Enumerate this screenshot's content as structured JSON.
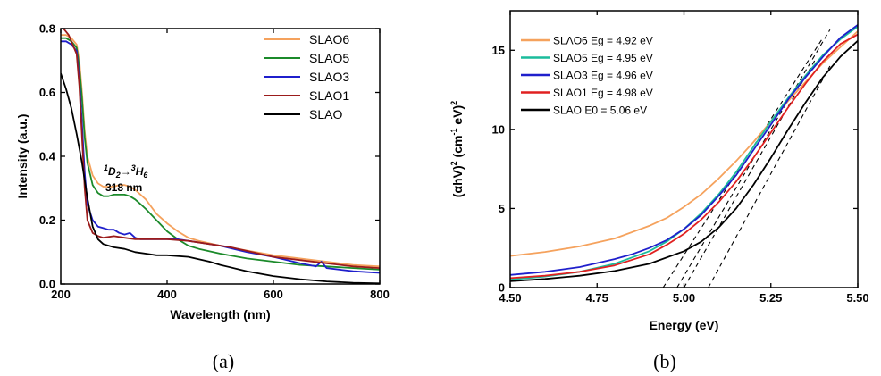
{
  "chart_data": [
    {
      "type": "line",
      "panel_label": "(a)",
      "xlabel": "Wavelength (nm)",
      "ylabel": "Intensity (a.u.)",
      "xlim": [
        200,
        800
      ],
      "ylim": [
        0,
        0.8
      ],
      "xticks": [
        "200",
        "400",
        "600",
        "800"
      ],
      "yticks": [
        "0.0",
        "0.2",
        "0.4",
        "0.6",
        "0.8"
      ],
      "legend_position": "top-right",
      "annotation": {
        "transition": "1D2→3H6",
        "wavelength": "318 nm"
      },
      "series": [
        {
          "name": "SLAO6",
          "color": "#f5a25d",
          "x": [
            200,
            210,
            220,
            230,
            235,
            240,
            245,
            250,
            260,
            270,
            280,
            290,
            300,
            310,
            320,
            330,
            340,
            350,
            360,
            380,
            400,
            420,
            440,
            460,
            500,
            550,
            600,
            650,
            700,
            750,
            800
          ],
          "y": [
            0.78,
            0.78,
            0.77,
            0.75,
            0.7,
            0.6,
            0.48,
            0.4,
            0.34,
            0.315,
            0.305,
            0.305,
            0.305,
            0.31,
            0.31,
            0.305,
            0.295,
            0.28,
            0.265,
            0.22,
            0.19,
            0.165,
            0.145,
            0.135,
            0.12,
            0.105,
            0.09,
            0.08,
            0.07,
            0.06,
            0.055
          ]
        },
        {
          "name": "SLAO5",
          "color": "#1b8a2a",
          "x": [
            200,
            210,
            220,
            230,
            235,
            240,
            245,
            250,
            260,
            270,
            280,
            290,
            300,
            310,
            320,
            330,
            340,
            350,
            360,
            380,
            400,
            420,
            440,
            460,
            500,
            550,
            600,
            650,
            700,
            750,
            800
          ],
          "y": [
            0.77,
            0.77,
            0.76,
            0.74,
            0.68,
            0.58,
            0.46,
            0.38,
            0.31,
            0.285,
            0.275,
            0.275,
            0.28,
            0.28,
            0.28,
            0.275,
            0.265,
            0.25,
            0.235,
            0.2,
            0.165,
            0.14,
            0.12,
            0.11,
            0.095,
            0.08,
            0.07,
            0.06,
            0.055,
            0.05,
            0.045
          ]
        },
        {
          "name": "SLAO3",
          "color": "#1f1fcc",
          "x": [
            200,
            210,
            220,
            230,
            235,
            240,
            245,
            250,
            260,
            270,
            280,
            290,
            300,
            310,
            320,
            330,
            340,
            350,
            360,
            380,
            400,
            420,
            440,
            460,
            500,
            550,
            600,
            650,
            680,
            690,
            700,
            750,
            800
          ],
          "y": [
            0.76,
            0.76,
            0.75,
            0.73,
            0.64,
            0.5,
            0.35,
            0.25,
            0.2,
            0.18,
            0.175,
            0.17,
            0.17,
            0.16,
            0.155,
            0.16,
            0.145,
            0.14,
            0.14,
            0.14,
            0.14,
            0.14,
            0.135,
            0.13,
            0.12,
            0.1,
            0.085,
            0.065,
            0.055,
            0.07,
            0.05,
            0.04,
            0.035
          ]
        },
        {
          "name": "SLAO1",
          "color": "#9b1b1b",
          "x": [
            200,
            205,
            210,
            215,
            220,
            230,
            235,
            240,
            245,
            250,
            260,
            270,
            280,
            300,
            320,
            340,
            360,
            380,
            400,
            440,
            480,
            520,
            560,
            600,
            650,
            700,
            750,
            800
          ],
          "y": [
            0.8,
            0.8,
            0.79,
            0.78,
            0.76,
            0.72,
            0.62,
            0.46,
            0.3,
            0.2,
            0.16,
            0.15,
            0.145,
            0.15,
            0.145,
            0.14,
            0.14,
            0.14,
            0.14,
            0.135,
            0.125,
            0.115,
            0.1,
            0.085,
            0.075,
            0.065,
            0.055,
            0.05
          ]
        },
        {
          "name": "SLAO",
          "color": "#000000",
          "x": [
            200,
            210,
            220,
            230,
            240,
            250,
            260,
            270,
            280,
            290,
            300,
            320,
            340,
            360,
            380,
            400,
            440,
            480,
            500,
            550,
            600,
            650,
            700,
            750,
            800
          ],
          "y": [
            0.66,
            0.61,
            0.55,
            0.47,
            0.38,
            0.27,
            0.18,
            0.14,
            0.125,
            0.12,
            0.115,
            0.11,
            0.1,
            0.095,
            0.09,
            0.09,
            0.085,
            0.07,
            0.06,
            0.04,
            0.025,
            0.015,
            0.008,
            0.004,
            0.002
          ]
        }
      ]
    },
    {
      "type": "line",
      "panel_label": "(b)",
      "xlabel": "Energy (eV)",
      "ylabel": "(αhV)2 (cm-1 eV)2",
      "xlim": [
        4.5,
        5.5
      ],
      "ylim": [
        0,
        17.5
      ],
      "xticks": [
        "4.50",
        "4.75",
        "5.00",
        "5.25",
        "5.50"
      ],
      "yticks": [
        "0",
        "5",
        "10",
        "15"
      ],
      "legend_position": "top-left",
      "series": [
        {
          "name": "SLAO6",
          "legend": "SLΛO6  Eg = 4.92 eV",
          "color": "#f5a25d",
          "x": [
            4.5,
            4.6,
            4.7,
            4.8,
            4.9,
            4.95,
            5.0,
            5.05,
            5.1,
            5.15,
            5.2,
            5.25,
            5.3,
            5.35,
            5.4,
            5.45,
            5.5
          ],
          "y": [
            2.0,
            2.25,
            2.6,
            3.1,
            3.9,
            4.4,
            5.1,
            5.9,
            6.9,
            8.0,
            9.2,
            10.5,
            11.8,
            13.0,
            14.2,
            15.2,
            16.2
          ]
        },
        {
          "name": "SLAO5",
          "legend": "SLAO5  Eg = 4.95 eV",
          "color": "#1abc9c",
          "x": [
            4.5,
            4.6,
            4.7,
            4.8,
            4.9,
            4.95,
            5.0,
            5.05,
            5.1,
            5.15,
            5.2,
            5.25,
            5.3,
            5.35,
            5.4,
            5.45,
            5.5
          ],
          "y": [
            0.5,
            0.7,
            1.0,
            1.5,
            2.3,
            2.9,
            3.7,
            4.7,
            5.9,
            7.3,
            8.9,
            10.5,
            12.0,
            13.4,
            14.7,
            15.7,
            16.5
          ]
        },
        {
          "name": "SLAO3",
          "legend": "SLAO3  Eg = 4.96 eV",
          "color": "#1f1fcc",
          "x": [
            4.5,
            4.6,
            4.7,
            4.8,
            4.85,
            4.9,
            4.95,
            5.0,
            5.05,
            5.1,
            5.15,
            5.2,
            5.25,
            5.3,
            5.35,
            5.4,
            5.45,
            5.5
          ],
          "y": [
            0.8,
            1.0,
            1.3,
            1.8,
            2.1,
            2.5,
            3.0,
            3.7,
            4.6,
            5.8,
            7.1,
            8.7,
            10.3,
            11.9,
            13.3,
            14.6,
            15.8,
            16.6
          ]
        },
        {
          "name": "SLAO1",
          "legend": "SLAO1  Eg = 4.98 eV",
          "color": "#e02020",
          "x": [
            4.5,
            4.6,
            4.7,
            4.8,
            4.9,
            4.95,
            5.0,
            5.05,
            5.1,
            5.15,
            5.2,
            5.25,
            5.3,
            5.35,
            5.4,
            5.45,
            5.5
          ],
          "y": [
            0.6,
            0.75,
            1.0,
            1.4,
            2.1,
            2.7,
            3.4,
            4.3,
            5.4,
            6.7,
            8.2,
            9.8,
            11.4,
            12.9,
            14.3,
            15.4,
            16.0
          ]
        },
        {
          "name": "SLAO",
          "legend": "SLAO    E0 = 5.06 eV",
          "color": "#000000",
          "x": [
            4.5,
            4.6,
            4.7,
            4.8,
            4.9,
            5.0,
            5.05,
            5.1,
            5.15,
            5.2,
            5.25,
            5.3,
            5.35,
            5.4,
            5.45,
            5.5
          ],
          "y": [
            0.4,
            0.55,
            0.75,
            1.05,
            1.5,
            2.3,
            2.9,
            3.8,
            5.0,
            6.5,
            8.2,
            10.0,
            11.7,
            13.3,
            14.6,
            15.6
          ]
        }
      ],
      "tangents": [
        {
          "x": [
            4.94,
            5.4
          ],
          "y": [
            0,
            15.8
          ]
        },
        {
          "x": [
            4.98,
            5.42
          ],
          "y": [
            0,
            16.3
          ]
        },
        {
          "x": [
            5.0,
            5.38
          ],
          "y": [
            0,
            14.5
          ]
        },
        {
          "x": [
            5.07,
            5.42
          ],
          "y": [
            0,
            14.0
          ]
        }
      ]
    }
  ]
}
